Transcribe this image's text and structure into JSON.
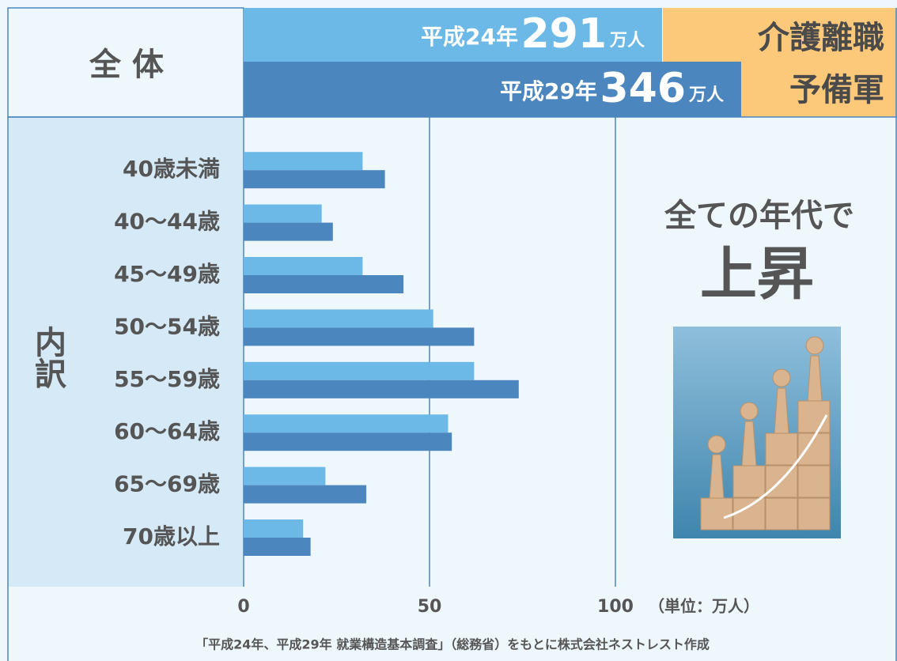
{
  "chart_data": {
    "type": "bar",
    "orientation": "horizontal",
    "header_label": "全 体",
    "side_label": "内訳",
    "badge": [
      "介護離職",
      "予備軍"
    ],
    "total_unit": "万人",
    "categories": [
      "40歳未満",
      "40～44歳",
      "45～49歳",
      "50～54歳",
      "55～59歳",
      "60～64歳",
      "65～69歳",
      "70歳以上"
    ],
    "series": [
      {
        "name": "平成24年",
        "color": "#6cb9e7",
        "total": 291,
        "values": [
          32,
          21,
          32,
          51,
          62,
          55,
          22,
          16
        ]
      },
      {
        "name": "平成29年",
        "color": "#4b86bf",
        "total": 346,
        "values": [
          38,
          24,
          43,
          62,
          74,
          56,
          33,
          18
        ]
      }
    ],
    "xlim": [
      0,
      174
    ],
    "xticks": [
      0,
      50,
      100
    ],
    "unit_label": "（単位：万人）",
    "headline": "全ての年代で",
    "headline_big": "上昇",
    "source": "「平成24年、平成29年 就業構造基本調査」（総務省）をもとに株式会社ネストレスト作成"
  }
}
